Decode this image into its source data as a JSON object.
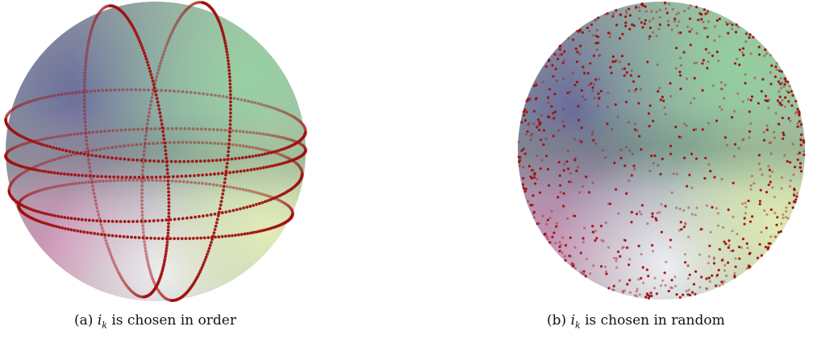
{
  "figure": {
    "panel_a": {
      "tag": "(a)",
      "var": "i",
      "sub": "k",
      "text": "is chosen in order",
      "sphere_colors": [
        "#6f6e9a",
        "#9fcfa6",
        "#c7a0b2",
        "#e6ecd0"
      ],
      "dot_color": "#a01010"
    },
    "panel_b": {
      "tag": "(b)",
      "var": "i",
      "sub": "k",
      "text": "is chosen in random",
      "sphere_colors": [
        "#6f6e9a",
        "#9fcfa6",
        "#c7a0b2",
        "#e6ecd0"
      ],
      "dot_color": "#a01010"
    }
  }
}
